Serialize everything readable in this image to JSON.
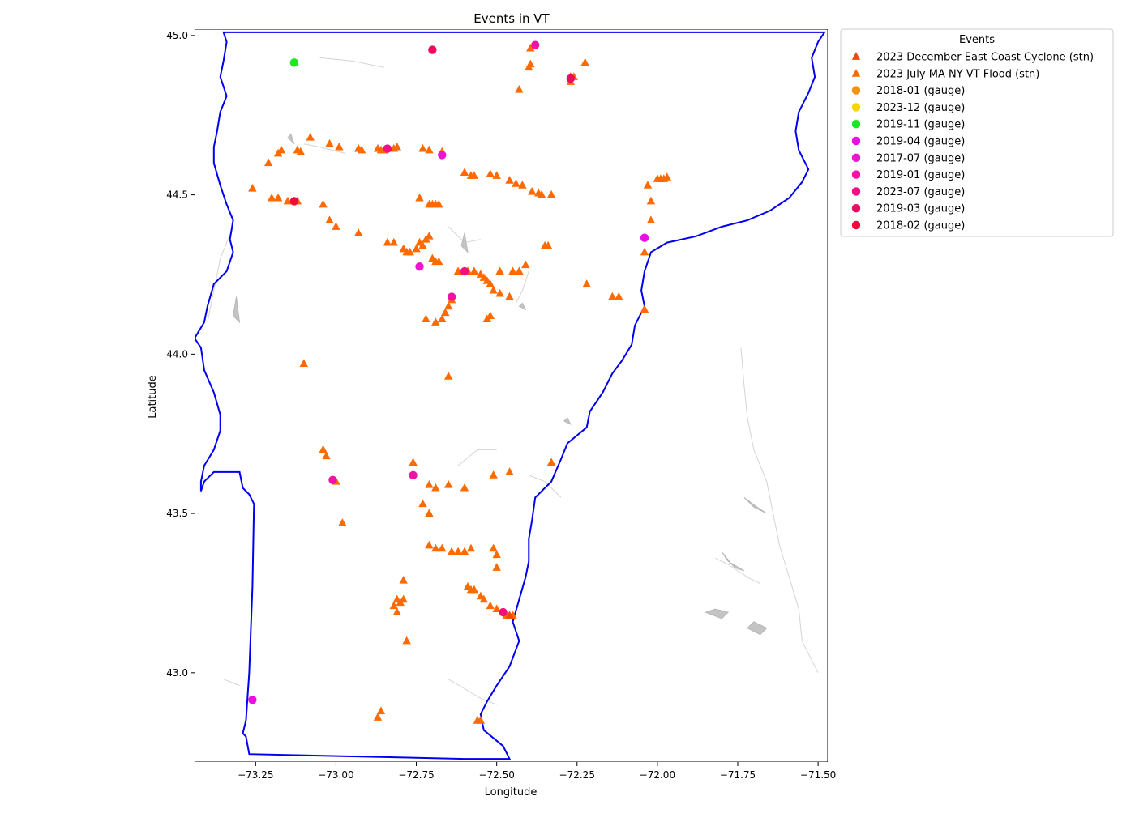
{
  "chart_data": {
    "type": "scatter",
    "title": "Events in VT",
    "xlabel": "Longitude",
    "ylabel": "Latitude",
    "xlim": [
      -73.44,
      -71.47
    ],
    "ylim": [
      42.72,
      45.02
    ],
    "xticks": [
      -73.25,
      -73.0,
      -72.75,
      -72.5,
      -72.25,
      -72.0,
      -71.75,
      -71.5
    ],
    "xtick_labels": [
      "−73.25",
      "−73.00",
      "−72.75",
      "−72.50",
      "−72.25",
      "−72.00",
      "−71.75",
      "−71.50"
    ],
    "yticks": [
      43.0,
      43.5,
      44.0,
      44.5,
      45.0
    ],
    "ytick_labels": [
      "43.0",
      "43.5",
      "44.0",
      "44.5",
      "45.0"
    ],
    "grid": false,
    "legend": {
      "title": "Events",
      "placement": "outside top-right",
      "entries": [
        {
          "label": "2023 December East Coast Cyclone (stn)",
          "marker": "triangle",
          "color": "#f24a0c"
        },
        {
          "label": "2023 July MA NY VT Flood (stn)",
          "marker": "triangle",
          "color": "#ff6a00"
        },
        {
          "label": "2018-01 (gauge)",
          "marker": "circle",
          "color": "#f59215"
        },
        {
          "label": "2023-12 (gauge)",
          "marker": "circle",
          "color": "#f7d30c"
        },
        {
          "label": "2019-11 (gauge)",
          "marker": "circle",
          "color": "#17ea1f"
        },
        {
          "label": "2019-04 (gauge)",
          "marker": "circle",
          "color": "#e80fe6"
        },
        {
          "label": "2017-07 (gauge)",
          "marker": "circle",
          "color": "#ee14d0"
        },
        {
          "label": "2019-01 (gauge)",
          "marker": "circle",
          "color": "#f312a8"
        },
        {
          "label": "2023-07 (gauge)",
          "marker": "circle",
          "color": "#f20f84"
        },
        {
          "label": "2019-03 (gauge)",
          "marker": "circle",
          "color": "#ee0b5e"
        },
        {
          "label": "2018-02 (gauge)",
          "marker": "circle",
          "color": "#f00b3d"
        }
      ]
    },
    "boundary_color": "#0000ee",
    "series": [
      {
        "name": "2023 July MA NY VT Flood (stn)",
        "marker": "triangle",
        "color": "#ff6a00",
        "x": [
          -72.395,
          -72.395,
          -72.4,
          -72.225,
          -72.26,
          -72.27,
          -72.43,
          -73.26,
          -73.21,
          -73.18,
          -73.17,
          -73.12,
          -73.11,
          -73.08,
          -73.02,
          -72.99,
          -72.93,
          -72.92,
          -72.87,
          -72.86,
          -72.85,
          -72.82,
          -72.81,
          -72.73,
          -72.71,
          -72.67,
          -72.6,
          -72.58,
          -72.57,
          -72.52,
          -72.5,
          -72.46,
          -72.44,
          -72.42,
          -72.39,
          -72.37,
          -72.36,
          -72.33,
          -72.03,
          -72.0,
          -71.99,
          -71.98,
          -71.97,
          -72.02,
          -72.02,
          -73.2,
          -73.18,
          -73.15,
          -73.12,
          -73.04,
          -73.02,
          -73.0,
          -72.93,
          -72.84,
          -72.82,
          -72.79,
          -72.78,
          -72.77,
          -72.75,
          -72.73,
          -72.74,
          -72.72,
          -72.71,
          -72.7,
          -72.69,
          -72.68,
          -72.74,
          -72.71,
          -72.7,
          -72.69,
          -72.68,
          -72.62,
          -72.6,
          -72.59,
          -72.57,
          -72.55,
          -72.54,
          -72.53,
          -72.52,
          -72.51,
          -72.49,
          -72.46,
          -72.49,
          -72.45,
          -72.43,
          -72.41,
          -72.35,
          -72.34,
          -72.04,
          -72.22,
          -72.14,
          -72.12,
          -72.04,
          -72.72,
          -72.69,
          -72.67,
          -72.66,
          -72.65,
          -72.64,
          -72.53,
          -72.52,
          -73.1,
          -72.65,
          -73.04,
          -73.03,
          -73.0,
          -72.98,
          -72.76,
          -72.71,
          -72.69,
          -72.65,
          -72.6,
          -72.51,
          -72.46,
          -72.33,
          -72.73,
          -72.71,
          -72.71,
          -72.69,
          -72.67,
          -72.64,
          -72.62,
          -72.6,
          -72.58,
          -72.51,
          -72.5,
          -72.5,
          -72.59,
          -72.58,
          -72.57,
          -72.55,
          -72.54,
          -72.52,
          -72.5,
          -72.47,
          -72.45,
          -72.79,
          -72.81,
          -72.82,
          -72.8,
          -72.81,
          -72.79,
          -72.78,
          -72.87,
          -72.86,
          -72.56,
          -72.55
        ],
        "y": [
          44.96,
          44.91,
          44.9,
          44.915,
          44.87,
          44.855,
          44.83,
          44.52,
          44.6,
          44.63,
          44.64,
          44.64,
          44.635,
          44.68,
          44.66,
          44.65,
          44.645,
          44.64,
          44.645,
          44.64,
          44.64,
          44.645,
          44.65,
          44.645,
          44.64,
          44.635,
          44.57,
          44.56,
          44.56,
          44.565,
          44.56,
          44.545,
          44.535,
          44.53,
          44.51,
          44.505,
          44.5,
          44.5,
          44.53,
          44.55,
          44.55,
          44.55,
          44.555,
          44.48,
          44.42,
          44.49,
          44.49,
          44.48,
          44.48,
          44.47,
          44.42,
          44.4,
          44.38,
          44.35,
          44.35,
          44.33,
          44.32,
          44.32,
          44.33,
          44.34,
          44.35,
          44.36,
          44.37,
          44.3,
          44.29,
          44.29,
          44.49,
          44.47,
          44.47,
          44.47,
          44.47,
          44.26,
          44.26,
          44.26,
          44.26,
          44.25,
          44.24,
          44.23,
          44.22,
          44.2,
          44.19,
          44.18,
          44.26,
          44.26,
          44.26,
          44.28,
          44.34,
          44.34,
          44.32,
          44.22,
          44.18,
          44.18,
          44.14,
          44.11,
          44.1,
          44.11,
          44.13,
          44.15,
          44.17,
          44.11,
          44.12,
          43.97,
          43.93,
          43.7,
          43.68,
          43.6,
          43.47,
          43.66,
          43.59,
          43.58,
          43.59,
          43.58,
          43.62,
          43.63,
          43.66,
          43.53,
          43.5,
          43.4,
          43.39,
          43.39,
          43.38,
          43.38,
          43.38,
          43.39,
          43.39,
          43.37,
          43.33,
          43.27,
          43.26,
          43.26,
          43.24,
          43.23,
          43.21,
          43.2,
          43.18,
          43.18,
          43.29,
          43.23,
          43.21,
          43.22,
          43.19,
          43.23,
          43.1,
          42.86,
          42.88,
          42.85,
          42.85
        ]
      },
      {
        "name": "2023 December East Coast Cyclone (stn)",
        "marker": "triangle",
        "color": "#f24a0c",
        "x": [
          -72.27,
          -72.46
        ],
        "y": [
          44.87,
          43.18
        ]
      },
      {
        "name": "2019-11 (gauge)",
        "marker": "circle",
        "color": "#17ea1f",
        "x": [
          -73.13
        ],
        "y": [
          44.915
        ]
      },
      {
        "name": "2019-04 (gauge)",
        "marker": "circle",
        "color": "#e80fe6",
        "x": [
          -72.04,
          -73.26
        ],
        "y": [
          44.365,
          42.915
        ]
      },
      {
        "name": "2017-07 (gauge)",
        "marker": "circle",
        "color": "#ee14d0",
        "x": [
          -72.67,
          -72.74
        ],
        "y": [
          44.625,
          44.275
        ]
      },
      {
        "name": "2019-01 (gauge)",
        "marker": "circle",
        "color": "#f312a8",
        "x": [
          -72.38,
          -72.64,
          -72.76,
          -73.01
        ],
        "y": [
          44.97,
          44.18,
          43.62,
          43.605
        ]
      },
      {
        "name": "2023-07 (gauge)",
        "marker": "circle",
        "color": "#f20f84",
        "x": [
          -72.84,
          -72.6,
          -72.48
        ],
        "y": [
          44.645,
          44.26,
          43.19
        ]
      },
      {
        "name": "2019-03 (gauge)",
        "marker": "circle",
        "color": "#ee0b5e",
        "x": [
          -72.7,
          -72.27
        ],
        "y": [
          44.955,
          44.865
        ]
      },
      {
        "name": "2018-02 (gauge)",
        "marker": "circle",
        "color": "#f00b3d",
        "x": [
          -73.13
        ],
        "y": [
          44.48
        ]
      }
    ]
  }
}
